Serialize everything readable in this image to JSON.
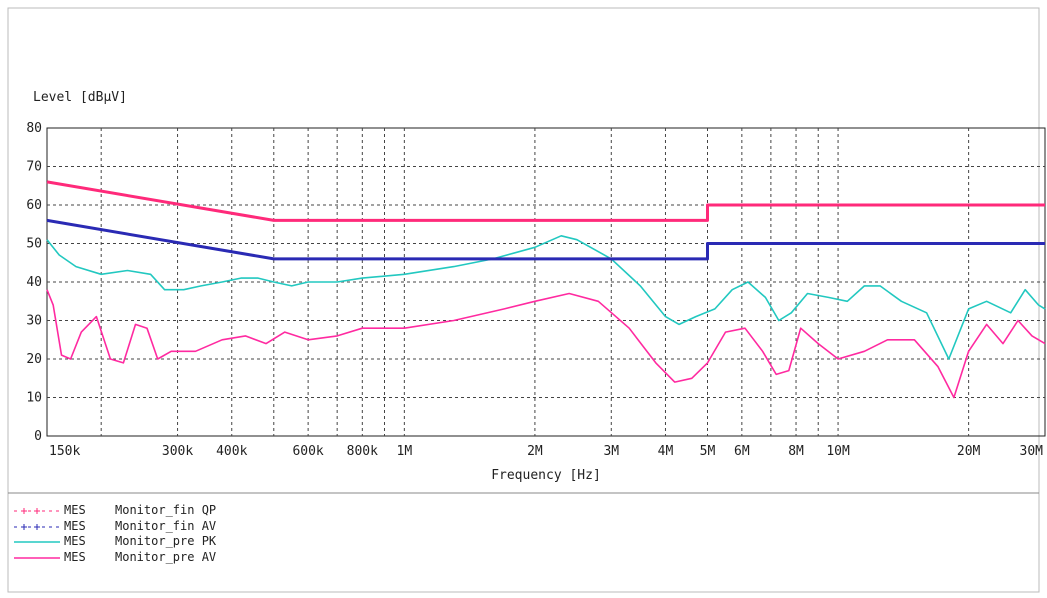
{
  "colors": {
    "qp_limit": "#ff2a7a",
    "av_limit": "#2a2ab4",
    "pre_pk": "#22c8c0",
    "pre_av": "#ff2aa0",
    "grid": "#444444",
    "axis": "#222222"
  },
  "chart_data": {
    "type": "line",
    "xlabel": "Frequency [Hz]",
    "ylabel": "Level [dBµV]",
    "x_scale": "log",
    "xlim": [
      150000,
      30000000
    ],
    "ylim": [
      0,
      80
    ],
    "y_ticks": [
      "0",
      "10",
      "20",
      "30",
      "40",
      "50",
      "60",
      "70",
      "80"
    ],
    "x_ticks": [
      {
        "value": 150000,
        "label": "150k"
      },
      {
        "value": 300000,
        "label": "300k"
      },
      {
        "value": 400000,
        "label": "400k"
      },
      {
        "value": 600000,
        "label": "600k"
      },
      {
        "value": 800000,
        "label": "800k"
      },
      {
        "value": 1000000,
        "label": "1M"
      },
      {
        "value": 2000000,
        "label": "2M"
      },
      {
        "value": 3000000,
        "label": "3M"
      },
      {
        "value": 4000000,
        "label": "4M"
      },
      {
        "value": 5000000,
        "label": "5M"
      },
      {
        "value": 6000000,
        "label": "6M"
      },
      {
        "value": 8000000,
        "label": "8M"
      },
      {
        "value": 10000000,
        "label": "10M"
      },
      {
        "value": 20000000,
        "label": "20M"
      },
      {
        "value": 30000000,
        "label": "30M"
      }
    ],
    "grid_x": [
      150000,
      200000,
      300000,
      400000,
      500000,
      600000,
      700000,
      800000,
      900000,
      1000000,
      2000000,
      3000000,
      4000000,
      5000000,
      6000000,
      7000000,
      8000000,
      9000000,
      10000000,
      20000000,
      30000000
    ],
    "grid": true,
    "legend_placement": "bottom-left",
    "series": [
      {
        "key": "qp_limit",
        "points": [
          [
            150000,
            66
          ],
          [
            500000,
            56
          ],
          [
            5000000,
            56
          ],
          [
            5000000,
            60
          ],
          [
            30000000,
            60
          ]
        ]
      },
      {
        "key": "av_limit",
        "points": [
          [
            150000,
            56
          ],
          [
            500000,
            46
          ],
          [
            5000000,
            46
          ],
          [
            5000000,
            50
          ],
          [
            30000000,
            50
          ]
        ]
      },
      {
        "key": "pre_pk",
        "points": [
          [
            150000,
            51
          ],
          [
            160000,
            47
          ],
          [
            175000,
            44
          ],
          [
            200000,
            42
          ],
          [
            230000,
            43
          ],
          [
            260000,
            42
          ],
          [
            280000,
            38
          ],
          [
            310000,
            38
          ],
          [
            340000,
            39
          ],
          [
            380000,
            40
          ],
          [
            420000,
            41
          ],
          [
            460000,
            41
          ],
          [
            500000,
            40
          ],
          [
            550000,
            39
          ],
          [
            600000,
            40
          ],
          [
            700000,
            40
          ],
          [
            800000,
            41
          ],
          [
            1000000,
            42
          ],
          [
            1300000,
            44
          ],
          [
            1600000,
            46
          ],
          [
            2000000,
            49
          ],
          [
            2300000,
            52
          ],
          [
            2500000,
            51
          ],
          [
            3000000,
            46
          ],
          [
            3500000,
            39
          ],
          [
            4000000,
            31
          ],
          [
            4300000,
            29
          ],
          [
            4700000,
            31
          ],
          [
            5200000,
            33
          ],
          [
            5700000,
            38
          ],
          [
            6200000,
            40
          ],
          [
            6800000,
            36
          ],
          [
            7300000,
            30
          ],
          [
            7800000,
            32
          ],
          [
            8500000,
            37
          ],
          [
            9500000,
            36
          ],
          [
            10500000,
            35
          ],
          [
            11500000,
            39
          ],
          [
            12500000,
            39
          ],
          [
            14000000,
            35
          ],
          [
            16000000,
            32
          ],
          [
            18000000,
            20
          ],
          [
            20000000,
            33
          ],
          [
            22000000,
            35
          ],
          [
            25000000,
            32
          ],
          [
            27000000,
            38
          ],
          [
            29000000,
            34
          ],
          [
            30000000,
            33
          ]
        ]
      },
      {
        "key": "pre_av",
        "points": [
          [
            150000,
            38
          ],
          [
            155000,
            34
          ],
          [
            162000,
            21
          ],
          [
            170000,
            20
          ],
          [
            180000,
            27
          ],
          [
            195000,
            31
          ],
          [
            210000,
            20
          ],
          [
            225000,
            19
          ],
          [
            240000,
            29
          ],
          [
            255000,
            28
          ],
          [
            270000,
            20
          ],
          [
            290000,
            22
          ],
          [
            330000,
            22
          ],
          [
            380000,
            25
          ],
          [
            430000,
            26
          ],
          [
            480000,
            24
          ],
          [
            530000,
            27
          ],
          [
            600000,
            25
          ],
          [
            700000,
            26
          ],
          [
            800000,
            28
          ],
          [
            1000000,
            28
          ],
          [
            1300000,
            30
          ],
          [
            1700000,
            33
          ],
          [
            2000000,
            35
          ],
          [
            2400000,
            37
          ],
          [
            2800000,
            35
          ],
          [
            3300000,
            28
          ],
          [
            3800000,
            19
          ],
          [
            4200000,
            14
          ],
          [
            4600000,
            15
          ],
          [
            5000000,
            19
          ],
          [
            5500000,
            27
          ],
          [
            6100000,
            28
          ],
          [
            6700000,
            22
          ],
          [
            7200000,
            16
          ],
          [
            7700000,
            17
          ],
          [
            8200000,
            28
          ],
          [
            9000000,
            24
          ],
          [
            10000000,
            20
          ],
          [
            11500000,
            22
          ],
          [
            13000000,
            25
          ],
          [
            15000000,
            25
          ],
          [
            17000000,
            18
          ],
          [
            18500000,
            10
          ],
          [
            20000000,
            22
          ],
          [
            22000000,
            29
          ],
          [
            24000000,
            24
          ],
          [
            26000000,
            30
          ],
          [
            28000000,
            26
          ],
          [
            30000000,
            24
          ]
        ]
      }
    ]
  },
  "legend": [
    {
      "key": "qp_limit",
      "source": "MES",
      "name": "Monitor_fin QP",
      "style": "dashed-cross"
    },
    {
      "key": "av_limit",
      "source": "MES",
      "name": "Monitor_fin AV",
      "style": "dashed-cross"
    },
    {
      "key": "pre_pk",
      "source": "MES",
      "name": "Monitor_pre PK",
      "style": "solid"
    },
    {
      "key": "pre_av",
      "source": "MES",
      "name": "Monitor_pre AV",
      "style": "solid"
    }
  ]
}
